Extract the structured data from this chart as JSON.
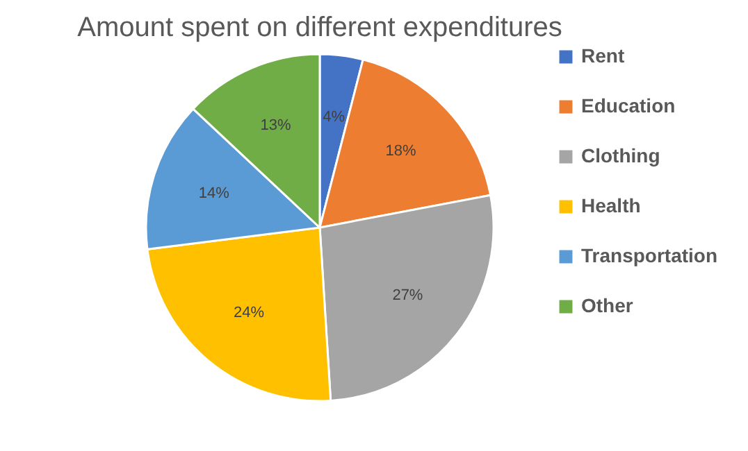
{
  "chart_data": {
    "type": "pie",
    "title": "Amount spent on different expenditures",
    "categories": [
      "Rent",
      "Education",
      "Clothing",
      "Health",
      "Transportation",
      "Other"
    ],
    "values": [
      4,
      18,
      27,
      24,
      14,
      13
    ],
    "value_labels": [
      "4%",
      "18%",
      "27%",
      "24%",
      "14%",
      "13%"
    ],
    "colors": [
      "#4472c4",
      "#ed7d31",
      "#a5a5a5",
      "#ffc000",
      "#5b9bd5",
      "#70ad47"
    ],
    "legend": "right"
  }
}
